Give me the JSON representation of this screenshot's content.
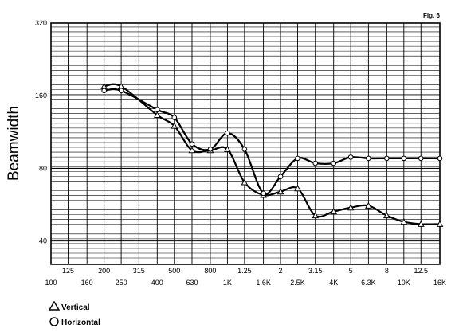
{
  "chart_data": {
    "type": "line",
    "figure_label": "Fig. 6",
    "ylabel": "Beamwidth",
    "y_scale": "log",
    "ylim": [
      32,
      320
    ],
    "y_ticks": [
      "320",
      "160",
      "80",
      "40"
    ],
    "x_scale": "log",
    "x_ticks_upper": [
      "125",
      "200",
      "315",
      "500",
      "800",
      "1.25",
      "2",
      "3.15",
      "5",
      "8",
      "12.5"
    ],
    "x_ticks_lower": [
      "100",
      "160",
      "250",
      "400",
      "630",
      "1K",
      "1.6K",
      "2.5K",
      "4K",
      "6.3K",
      "10K",
      "16K"
    ],
    "grid": true,
    "legend": "bottom-left",
    "series": [
      {
        "name": "Vertical",
        "marker": "triangle",
        "x": [
          200,
          250,
          400,
          500,
          630,
          800,
          1000,
          1250,
          1600,
          2000,
          2500,
          3150,
          4000,
          5000,
          6300,
          8000,
          10000,
          12500,
          16000
        ],
        "values": [
          175,
          175,
          133,
          120,
          95,
          95,
          96,
          70,
          62,
          64,
          66,
          51,
          53,
          55,
          56,
          51,
          48,
          47,
          47
        ]
      },
      {
        "name": "Horizontal",
        "marker": "circle",
        "x": [
          200,
          250,
          400,
          500,
          630,
          800,
          1000,
          1250,
          1600,
          2000,
          2500,
          3150,
          4000,
          5000,
          6300,
          8000,
          10000,
          12500,
          16000
        ],
        "values": [
          168,
          168,
          140,
          130,
          101,
          96,
          112,
          96,
          63,
          74,
          88,
          84,
          84,
          89,
          88,
          88,
          88,
          88,
          88
        ]
      }
    ]
  }
}
